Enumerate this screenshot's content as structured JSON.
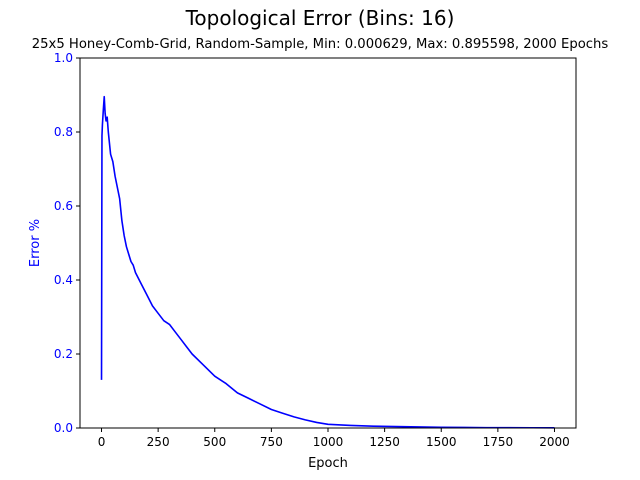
{
  "chart_data": {
    "type": "line",
    "title": "Topological Error (Bins: 16)",
    "subtitle": "25x5 Honey-Comb-Grid, Random-Sample, Min: 0.000629, Max: 0.895598, 2000 Epochs",
    "xlabel": "Epoch",
    "ylabel": "Error %",
    "xlim": [
      -95,
      2095
    ],
    "ylim": [
      0,
      1
    ],
    "xticks": [
      0,
      250,
      500,
      750,
      1000,
      1250,
      1500,
      1750,
      2000
    ],
    "yticks": [
      0.0,
      0.2,
      0.4,
      0.6,
      0.8,
      1.0
    ],
    "grid": false,
    "colors": {
      "series": "#0000ff",
      "ylabel": "#0000ff",
      "yticks": "#0000ff",
      "axes": "#000000"
    },
    "series": [
      {
        "x": [
          0,
          2,
          4,
          8,
          12,
          16,
          20,
          25,
          30,
          40,
          50,
          60,
          70,
          80,
          90,
          100,
          110,
          120,
          130,
          140,
          150,
          175,
          200,
          225,
          250,
          275,
          300,
          325,
          350,
          375,
          400,
          450,
          500,
          550,
          600,
          650,
          700,
          750,
          800,
          850,
          900,
          950,
          1000,
          1100,
          1200,
          1300,
          1400,
          1500,
          1600,
          1700,
          1800,
          1900,
          2000
        ],
        "y": [
          0.13,
          0.79,
          0.82,
          0.86,
          0.895598,
          0.85,
          0.83,
          0.84,
          0.8,
          0.74,
          0.72,
          0.68,
          0.65,
          0.62,
          0.56,
          0.52,
          0.49,
          0.47,
          0.45,
          0.44,
          0.42,
          0.39,
          0.36,
          0.33,
          0.31,
          0.29,
          0.28,
          0.26,
          0.24,
          0.22,
          0.2,
          0.17,
          0.14,
          0.12,
          0.095,
          0.08,
          0.065,
          0.05,
          0.04,
          0.03,
          0.022,
          0.015,
          0.01,
          0.007,
          0.005,
          0.004,
          0.003,
          0.002,
          0.0015,
          0.001,
          0.0008,
          0.0007,
          0.000629
        ]
      }
    ]
  }
}
